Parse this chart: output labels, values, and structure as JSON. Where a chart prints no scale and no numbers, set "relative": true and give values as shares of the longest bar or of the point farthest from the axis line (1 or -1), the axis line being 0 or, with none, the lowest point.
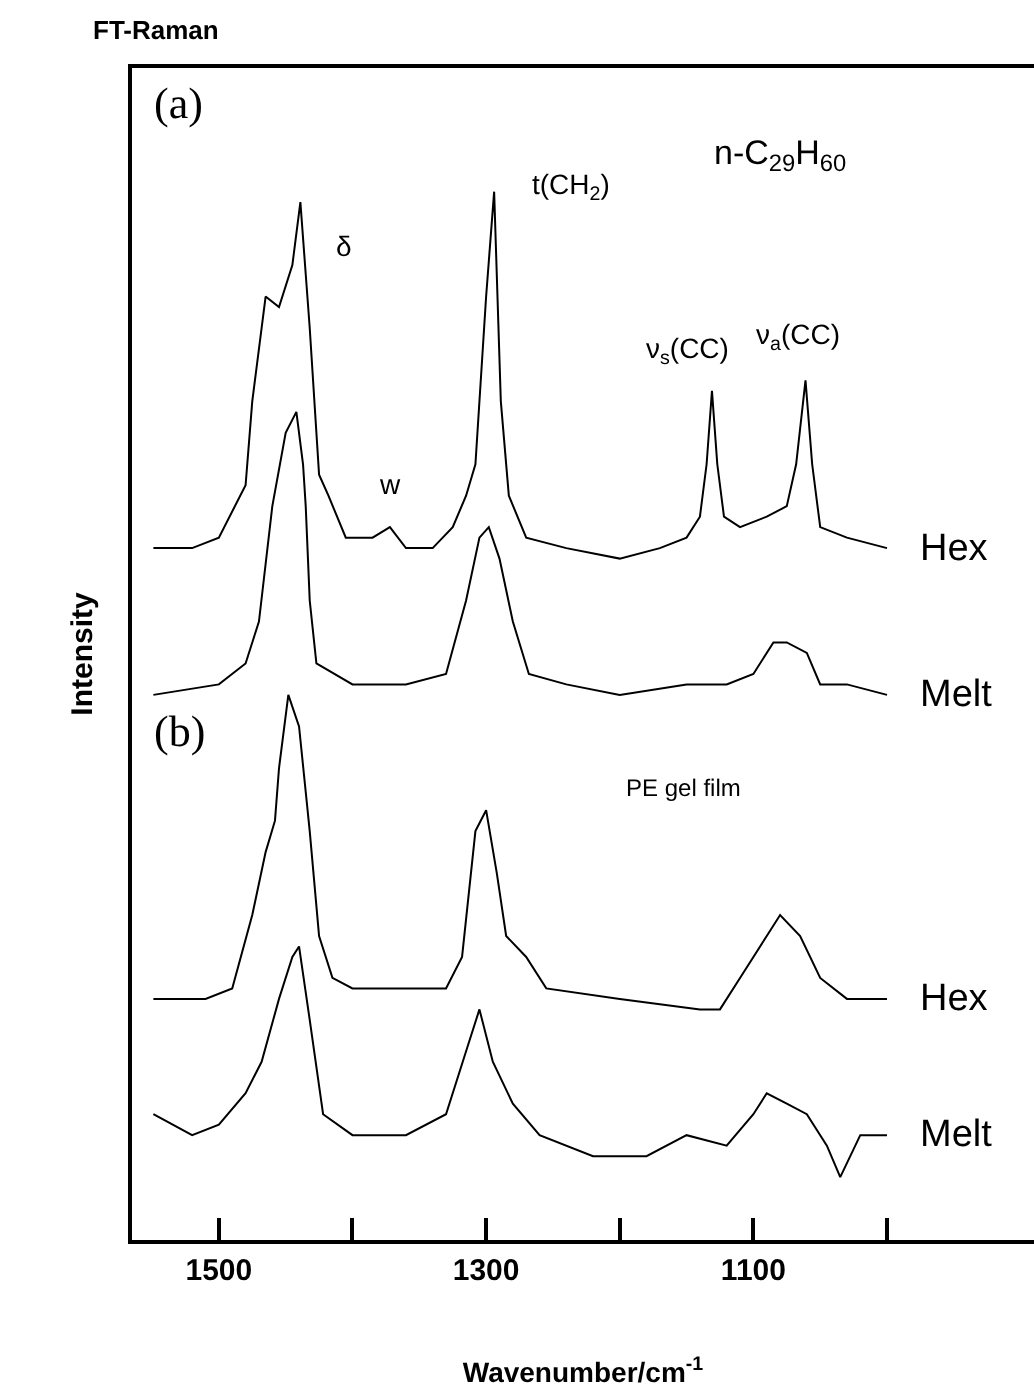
{
  "chart_data": {
    "type": "line",
    "title": "FT-Raman",
    "xlabel": "Wavenumber/cm$^{-1}$",
    "ylabel": "Intensity",
    "relative": true,
    "legend": false,
    "grid": false,
    "marker": "none",
    "line_style": "solid",
    "xlim": [
      1565,
      890
    ],
    "xticks": [
      1500,
      {
        "value": 1400,
        "label": null
      },
      1300,
      {
        "value": 1200,
        "label": null
      },
      1100,
      {
        "value": 1000,
        "label": null
      }
    ],
    "annotations": [
      "(a)",
      "n-C$_{29}$H$_{60}$",
      "(b)",
      "PE gel film",
      {
        "text": "δ",
        "x": 1439,
        "y": 0.99
      },
      {
        "text": "w",
        "x": 1372,
        "y": 0.68
      },
      {
        "text": "t(CH$_{2}$)",
        "x": 1294,
        "y": 1
      },
      {
        "text": "ν$_{s}$(CC)",
        "x": 1131,
        "y": 0.81
      },
      {
        "text": "ν$_{a}$(CC)",
        "x": 1061,
        "y": 0.82
      }
    ],
    "series": [
      {
        "name": "Hex",
        "color": "#000000",
        "x": [
          1549,
          1520,
          1500,
          1480,
          1475,
          1465,
          1455,
          1445,
          1439,
          1432,
          1425,
          1418,
          1405,
          1385,
          1372,
          1360,
          1340,
          1325,
          1315,
          1308,
          1300,
          1294,
          1289,
          1283,
          1270,
          1240,
          1200,
          1170,
          1150,
          1140,
          1135,
          1131,
          1127,
          1122,
          1110,
          1090,
          1075,
          1068,
          1061,
          1056,
          1050,
          1030,
          1000
        ],
        "values": [
          0.66,
          0.66,
          0.67,
          0.72,
          0.8,
          0.9,
          0.89,
          0.93,
          0.99,
          0.87,
          0.73,
          0.71,
          0.67,
          0.67,
          0.68,
          0.66,
          0.66,
          0.68,
          0.71,
          0.74,
          0.9,
          1.0,
          0.8,
          0.71,
          0.67,
          0.66,
          0.65,
          0.66,
          0.67,
          0.69,
          0.74,
          0.81,
          0.74,
          0.69,
          0.68,
          0.69,
          0.7,
          0.74,
          0.82,
          0.74,
          0.68,
          0.67,
          0.66
        ]
      },
      {
        "name": "Melt",
        "color": "#000000",
        "x": [
          1549,
          1500,
          1480,
          1470,
          1460,
          1450,
          1442,
          1437,
          1435,
          1432,
          1427,
          1400,
          1360,
          1330,
          1315,
          1305,
          1298,
          1290,
          1280,
          1268,
          1240,
          1200,
          1150,
          1120,
          1100,
          1085,
          1075,
          1060,
          1050,
          1030,
          1000
        ],
        "values": [
          0.52,
          0.53,
          0.55,
          0.59,
          0.7,
          0.77,
          0.79,
          0.74,
          0.7,
          0.61,
          0.55,
          0.53,
          0.53,
          0.54,
          0.61,
          0.67,
          0.68,
          0.65,
          0.59,
          0.54,
          0.53,
          0.52,
          0.53,
          0.53,
          0.54,
          0.57,
          0.57,
          0.56,
          0.53,
          0.53,
          0.52
        ]
      },
      {
        "name": "Hex",
        "color": "#000000",
        "x": [
          1549,
          1510,
          1490,
          1475,
          1465,
          1458,
          1455,
          1448,
          1440,
          1432,
          1425,
          1415,
          1400,
          1360,
          1330,
          1318,
          1308,
          1300,
          1292,
          1285,
          1270,
          1255,
          1200,
          1140,
          1125,
          1110,
          1090,
          1080,
          1065,
          1050,
          1030,
          1000
        ],
        "values": [
          0.23,
          0.23,
          0.24,
          0.31,
          0.37,
          0.4,
          0.45,
          0.52,
          0.49,
          0.39,
          0.29,
          0.25,
          0.24,
          0.24,
          0.24,
          0.27,
          0.39,
          0.41,
          0.35,
          0.29,
          0.27,
          0.24,
          0.23,
          0.22,
          0.22,
          0.25,
          0.29,
          0.31,
          0.29,
          0.25,
          0.23,
          0.23
        ]
      },
      {
        "name": "Melt",
        "color": "#000000",
        "x": [
          1549,
          1520,
          1500,
          1480,
          1468,
          1455,
          1445,
          1440,
          1432,
          1422,
          1400,
          1360,
          1330,
          1315,
          1305,
          1295,
          1280,
          1260,
          1220,
          1180,
          1150,
          1120,
          1100,
          1090,
          1075,
          1060,
          1045,
          1035,
          1020,
          1000
        ],
        "values": [
          0.12,
          0.1,
          0.11,
          0.14,
          0.17,
          0.23,
          0.27,
          0.28,
          0.21,
          0.12,
          0.1,
          0.1,
          0.12,
          0.18,
          0.22,
          0.17,
          0.13,
          0.1,
          0.08,
          0.08,
          0.1,
          0.09,
          0.12,
          0.14,
          0.13,
          0.12,
          0.09,
          0.06,
          0.1,
          0.1
        ]
      }
    ]
  }
}
